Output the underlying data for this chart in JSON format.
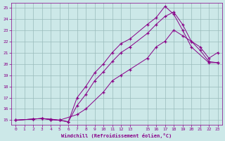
{
  "xlabel": "Windchill (Refroidissement éolien,°C)",
  "bg_color": "#cce8e8",
  "line_color": "#880088",
  "grid_color": "#99bbbb",
  "xlim_min": -0.5,
  "xlim_max": 23.5,
  "ylim_min": 14.6,
  "ylim_max": 25.4,
  "xticks": [
    0,
    1,
    2,
    3,
    4,
    5,
    6,
    7,
    8,
    9,
    10,
    11,
    12,
    13,
    15,
    16,
    17,
    18,
    19,
    20,
    21,
    22,
    23
  ],
  "yticks": [
    15,
    16,
    17,
    18,
    19,
    20,
    21,
    22,
    23,
    24,
    25
  ],
  "line1_x": [
    0,
    2,
    3,
    4,
    5,
    7,
    8,
    10,
    11,
    12,
    13,
    15,
    16,
    17,
    18,
    19,
    20,
    21,
    22,
    23
  ],
  "line1_y": [
    15.0,
    15.1,
    15.15,
    15.05,
    15.0,
    15.5,
    16.0,
    17.5,
    18.5,
    19.0,
    19.5,
    20.5,
    21.5,
    22.0,
    23.0,
    22.5,
    22.0,
    21.5,
    20.5,
    21.0
  ],
  "line2_x": [
    0,
    2,
    3,
    4,
    5,
    6,
    7,
    8,
    9,
    10,
    11,
    12,
    13,
    15,
    16,
    17,
    18,
    19,
    20,
    22,
    23
  ],
  "line2_y": [
    15.0,
    15.1,
    15.15,
    15.05,
    15.0,
    14.85,
    17.0,
    18.0,
    19.2,
    20.0,
    21.0,
    21.8,
    22.2,
    23.5,
    24.1,
    25.1,
    24.4,
    23.0,
    21.5,
    20.1,
    20.1
  ],
  "line3_x": [
    0,
    2,
    3,
    4,
    5,
    6,
    7,
    8,
    9,
    10,
    11,
    12,
    13,
    15,
    16,
    17,
    18,
    19,
    20,
    21,
    22,
    23
  ],
  "line3_y": [
    15.0,
    15.1,
    15.15,
    15.1,
    15.0,
    14.85,
    16.3,
    17.3,
    18.5,
    19.3,
    20.2,
    21.0,
    21.5,
    22.7,
    23.5,
    24.2,
    24.6,
    23.5,
    22.0,
    21.2,
    20.2,
    20.1
  ]
}
